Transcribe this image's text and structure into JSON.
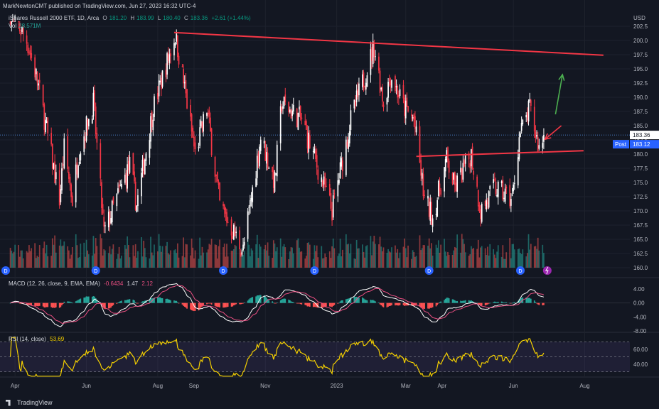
{
  "header": {
    "published": "MarkNewtonCMT published on TradingView.com, Jun 27, 2023 16:32 UTC-4",
    "symbol": "iShares Russell 2000 ETF, 1D, Arca",
    "o_label": "O",
    "o": "181.20",
    "h_label": "H",
    "h": "183.99",
    "l_label": "L",
    "l": "180.40",
    "c_label": "C",
    "c": "183.36",
    "change": "+2.61 (+1.44%)",
    "vol_label": "Vol",
    "vol": "28.571M"
  },
  "macd_legend": {
    "label": "MACD (12, 26, close, 9, EMA, EMA)",
    "v1": "-0.6434",
    "v2": "1.47",
    "v3": "2.12"
  },
  "rsi_legend": {
    "label": "RSI (14, close)",
    "value": "53.69"
  },
  "footer": {
    "brand": "TradingView"
  },
  "colors": {
    "up": "#089981",
    "down": "#f23645",
    "trend": "#f23645",
    "arrow_up": "#4caf50",
    "macd": "#ffffff",
    "signal": "#ec4f82",
    "rsi": "#f5d000",
    "rsi_band": "#7e57c2"
  },
  "chart_data": [
    {
      "type": "candlestick",
      "title": "iShares Russell 2000 ETF, 1D, Arca",
      "ylabel": "USD",
      "y_ticks": [
        160,
        162.5,
        165,
        167.5,
        170,
        172.5,
        175,
        177.5,
        180,
        182.5,
        185,
        187.5,
        190,
        192.5,
        195,
        197.5,
        200,
        202.5
      ],
      "ylim": [
        158.5,
        203.5
      ],
      "x_ticks": [
        "Apr",
        "Jun",
        "Aug",
        "Sep",
        "Nov",
        "2023",
        "Mar",
        "Apr",
        "Jun",
        "Aug"
      ],
      "last_price": {
        "label": "183.36",
        "value": 183.36
      },
      "post_price": {
        "label": "Post",
        "value": "183.12"
      },
      "anchors": [
        [
          "2022-03-28",
          205
        ],
        [
          "2022-04-11",
          200
        ],
        [
          "2022-04-20",
          193
        ],
        [
          "2022-05-09",
          172
        ],
        [
          "2022-05-13",
          181
        ],
        [
          "2022-05-20",
          172
        ],
        [
          "2022-05-25",
          180
        ],
        [
          "2022-06-07",
          189
        ],
        [
          "2022-06-16",
          166
        ],
        [
          "2022-06-23",
          170
        ],
        [
          "2022-07-08",
          178
        ],
        [
          "2022-07-14",
          171
        ],
        [
          "2022-07-28",
          188
        ],
        [
          "2022-08-16",
          201
        ],
        [
          "2022-08-22",
          194
        ],
        [
          "2022-09-02",
          180
        ],
        [
          "2022-09-12",
          188
        ],
        [
          "2022-09-23",
          171
        ],
        [
          "2022-10-13",
          163
        ],
        [
          "2022-10-28",
          183
        ],
        [
          "2022-11-09",
          175
        ],
        [
          "2022-11-15",
          189
        ],
        [
          "2022-12-02",
          186
        ],
        [
          "2022-12-28",
          170
        ],
        [
          "2023-01-13",
          186
        ],
        [
          "2023-02-02",
          199
        ],
        [
          "2023-02-10",
          189
        ],
        [
          "2023-02-16",
          194
        ],
        [
          "2023-02-28",
          188
        ],
        [
          "2023-03-08",
          186
        ],
        [
          "2023-03-17",
          172
        ],
        [
          "2023-03-24",
          169
        ],
        [
          "2023-04-05",
          179
        ],
        [
          "2023-04-12",
          174
        ],
        [
          "2023-04-26",
          180
        ],
        [
          "2023-05-04",
          170
        ],
        [
          "2023-05-16",
          174
        ],
        [
          "2023-05-31",
          172
        ],
        [
          "2023-06-06",
          183
        ],
        [
          "2023-06-15",
          188
        ],
        [
          "2023-06-23",
          181
        ],
        [
          "2023-06-27",
          183.36
        ]
      ],
      "annotations": [
        {
          "type": "trendline",
          "from": [
            "2022-08-15",
            201.4
          ],
          "to": [
            "2023-08-17",
            197.4
          ]
        },
        {
          "type": "trendline",
          "from": [
            "2023-03-10",
            179.6
          ],
          "to": [
            "2023-07-31",
            180.6
          ]
        },
        {
          "type": "arrow",
          "direction": "up",
          "from": [
            "2023-07-07",
            187
          ],
          "to": [
            "2023-07-13",
            194
          ]
        },
        {
          "type": "arrow",
          "direction": "left",
          "from": [
            "2023-07-12",
            185
          ],
          "to": [
            "2023-06-28",
            182.6
          ]
        }
      ],
      "dividend_marks": [
        "2022-03-24",
        "2022-06-09",
        "2022-09-26",
        "2022-12-13",
        "2023-03-21",
        "2023-06-07"
      ],
      "earnings_mark": "2023-06-30"
    },
    {
      "type": "histogram",
      "name": "MACD (12, 26, close, 9, EMA, EMA)",
      "y_ticks": [
        4.0,
        0.0,
        -4.0,
        -8.0
      ],
      "ylim": [
        -9,
        5
      ]
    },
    {
      "type": "line",
      "name": "RSI (14, close)",
      "y_ticks": [
        60.0,
        40.0
      ],
      "bands": [
        70,
        30
      ],
      "ylim": [
        24,
        76
      ]
    }
  ]
}
